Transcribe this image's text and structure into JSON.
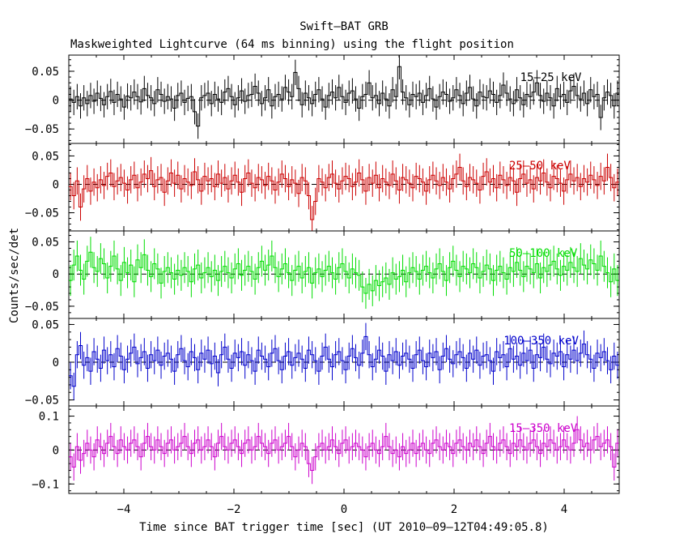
{
  "chart_data": {
    "type": "line",
    "title": "Swift–BAT GRB",
    "subtitle": "Maskweighted Lightcurve (64 ms binning) using the flight position",
    "xlabel": "Time since BAT trigger time [sec] (UT 2010–09–12T04:49:05.8)",
    "ylabel": "Counts/sec/det",
    "xlim": [
      -5.0,
      5.0
    ],
    "x_tick_labels": [
      "−4",
      "−2",
      "0",
      "2",
      "4"
    ],
    "bin_width_sec": 0.064,
    "panels": [
      {
        "name": "15–25 keV",
        "color": "#000000",
        "ylim": [
          -0.075,
          0.078
        ],
        "y_ticks": [
          -0.05,
          0,
          0.05
        ],
        "y_tick_labels": [
          "−0.05",
          "0",
          "0.05"
        ],
        "error": 0.022,
        "values": [
          0.002,
          -0.004,
          0.006,
          -0.01,
          0.004,
          -0.006,
          0.008,
          -0.002,
          0.012,
          0.003,
          -0.008,
          0.006,
          0.015,
          -0.004,
          0.01,
          0.002,
          -0.012,
          0.007,
          0.004,
          0.014,
          0.006,
          -0.003,
          0.02,
          0.008,
          0.004,
          -0.006,
          0.018,
          0.01,
          -0.002,
          0.006,
          0.002,
          -0.014,
          0.008,
          0.012,
          -0.004,
          0.003,
          0.006,
          -0.02,
          -0.045,
          0.004,
          0.008,
          0.012,
          -0.006,
          0.01,
          0.002,
          -0.004,
          0.014,
          0.02,
          0.006,
          -0.008,
          0.004,
          0.016,
          -0.002,
          0.008,
          0.01,
          0.024,
          0.012,
          -0.006,
          0.004,
          0.018,
          -0.01,
          0.006,
          0.01,
          0.002,
          0.022,
          0.014,
          0.006,
          0.048,
          0.02,
          -0.008,
          0.012,
          0.004,
          -0.006,
          0.01,
          0.018,
          0.002,
          -0.012,
          0.008,
          0.014,
          0.004,
          0.022,
          0.006,
          -0.004,
          0.012,
          0.016,
          0.002,
          -0.014,
          0.006,
          0.01,
          0.03,
          0.004,
          0.008,
          -0.006,
          0.012,
          0.002,
          -0.01,
          0.018,
          0.006,
          0.058,
          0.014,
          0.004,
          -0.008,
          0.01,
          0.006,
          0.012,
          -0.004,
          0.008,
          0.02,
          0.002,
          -0.012,
          0.006,
          0.014,
          0.01,
          -0.002,
          0.004,
          0.018,
          0.008,
          -0.006,
          0.012,
          0.022,
          0.002,
          -0.01,
          0.014,
          0.006,
          0.004,
          0.016,
          0.01,
          -0.004,
          0.008,
          0.026,
          0.012,
          0.002,
          -0.006,
          0.018,
          0.004,
          -0.008,
          0.01,
          0.006,
          0.014,
          0.03,
          0.008,
          -0.002,
          0.012,
          0.004,
          -0.01,
          0.02,
          0.006,
          0.01,
          -0.004,
          0.016,
          0.024,
          0.008,
          0.002,
          0.012,
          -0.006,
          0.018,
          0.006,
          0.01,
          -0.03,
          0.004,
          0.014,
          0.008,
          -0.01,
          0.012
        ],
        "annotation_x": 3.2
      },
      {
        "name": "25–50 keV",
        "color": "#cc0000",
        "ylim": [
          -0.082,
          0.072
        ],
        "y_ticks": [
          -0.05,
          0,
          0.05
        ],
        "y_tick_labels": [
          "−0.05",
          "0",
          "0.05"
        ],
        "error": 0.024,
        "values": [
          -0.004,
          -0.02,
          0.006,
          -0.04,
          -0.008,
          0.01,
          -0.012,
          0.004,
          -0.006,
          0.008,
          -0.002,
          0.014,
          0.02,
          -0.004,
          0.006,
          0.012,
          0.002,
          -0.01,
          0.008,
          0.016,
          -0.006,
          0.004,
          0.018,
          0.01,
          0.024,
          -0.004,
          0.008,
          0.012,
          -0.014,
          0.006,
          0.02,
          0.002,
          0.016,
          -0.008,
          0.01,
          0.004,
          -0.002,
          0.022,
          0.008,
          -0.012,
          0.014,
          0.006,
          0.01,
          -0.004,
          0.018,
          0.002,
          0.012,
          -0.008,
          0.006,
          0.016,
          0.004,
          -0.014,
          0.01,
          0.02,
          0.002,
          -0.006,
          0.012,
          0.008,
          -0.002,
          0.014,
          0.006,
          -0.01,
          0.004,
          0.018,
          0.01,
          -0.004,
          0.008,
          0.002,
          -0.016,
          0.012,
          0.006,
          -0.02,
          -0.062,
          -0.03,
          0.01,
          0.004,
          -0.006,
          0.012,
          0.018,
          0.002,
          -0.008,
          0.006,
          0.014,
          0.01,
          -0.004,
          0.004,
          0.02,
          0.008,
          -0.012,
          0.012,
          0.002,
          0.016,
          -0.006,
          0.01,
          0.004,
          -0.002,
          0.018,
          0.006,
          -0.01,
          0.012,
          0.008,
          0.002,
          -0.006,
          0.014,
          0.01,
          0.004,
          -0.012,
          0.008,
          0.016,
          0.006,
          -0.002,
          0.012,
          0.004,
          -0.008,
          0.01,
          0.018,
          0.03,
          0.006,
          -0.004,
          0.012,
          0.008,
          0.002,
          -0.01,
          0.014,
          0.022,
          0.004,
          0.01,
          -0.006,
          0.016,
          0.008,
          -0.002,
          0.012,
          0.006,
          -0.014,
          0.01,
          0.018,
          0.002,
          0.008,
          -0.008,
          0.012,
          0.006,
          0.02,
          0.004,
          -0.006,
          0.014,
          0.01,
          0.002,
          -0.012,
          0.008,
          0.018,
          0.006,
          0.012,
          -0.004,
          0.01,
          0.004,
          0.016,
          0.008,
          -0.002,
          0.014,
          0.006,
          0.03,
          0.012,
          -0.006,
          0.004
        ],
        "annotation_x": 3.0
      },
      {
        "name": "50–100 keV",
        "color": "#00dd00",
        "ylim": [
          -0.069,
          0.067
        ],
        "y_ticks": [
          -0.05,
          0,
          0.05
        ],
        "y_tick_labels": [
          "−0.05",
          "0",
          "0.05"
        ],
        "error": 0.024,
        "values": [
          -0.01,
          0.014,
          0.028,
          0.006,
          -0.008,
          0.02,
          0.034,
          0.01,
          0.004,
          0.024,
          0.016,
          -0.006,
          0.012,
          0.028,
          0.008,
          -0.01,
          0.018,
          0.002,
          0.014,
          -0.012,
          0.022,
          0.01,
          0.03,
          0.006,
          -0.004,
          0.016,
          0.008,
          -0.014,
          0.004,
          0.01,
          0.002,
          -0.008,
          0.006,
          -0.002,
          0.01,
          0.004,
          -0.012,
          0.008,
          0.014,
          -0.006,
          0.002,
          0.01,
          -0.004,
          0.006,
          -0.01,
          0.004,
          0.012,
          0.002,
          -0.006,
          0.008,
          0.016,
          -0.002,
          0.006,
          0.012,
          0.004,
          -0.008,
          0.01,
          0.02,
          0.006,
          0.014,
          0.028,
          0.01,
          -0.004,
          0.008,
          0.016,
          0.002,
          -0.01,
          0.006,
          0.012,
          -0.006,
          0.004,
          0.01,
          -0.014,
          0.002,
          0.008,
          -0.004,
          0.006,
          0.012,
          0.002,
          -0.008,
          0.01,
          0.016,
          0.004,
          -0.006,
          0.008,
          0.002,
          -0.002,
          -0.02,
          -0.03,
          -0.016,
          -0.026,
          -0.01,
          -0.018,
          -0.012,
          -0.006,
          -0.016,
          0.002,
          -0.008,
          -0.004,
          0.006,
          -0.012,
          0.002,
          0.01,
          0.004,
          -0.008,
          0.006,
          0.012,
          0.002,
          -0.006,
          0.008,
          0.016,
          0.004,
          -0.01,
          0.01,
          0.02,
          0.006,
          -0.004,
          0.012,
          0.008,
          0.002,
          0.016,
          0.01,
          -0.006,
          0.004,
          0.014,
          0.008,
          -0.01,
          0.006,
          0.012,
          0.002,
          -0.008,
          0.01,
          0.004,
          0.018,
          0.006,
          -0.004,
          0.012,
          0.008,
          0.002,
          0.016,
          -0.006,
          0.01,
          0.004,
          0.014,
          0.02,
          0.008,
          -0.002,
          0.012,
          0.006,
          0.018,
          0.01,
          0.004,
          0.024,
          0.014,
          0.008,
          0.022,
          0.016,
          0.006,
          0.028,
          0.012,
          0.002,
          -0.012,
          0.008,
          -0.01
        ],
        "annotation_x": 3.0
      },
      {
        "name": "100–350 keV",
        "color": "#0000cc",
        "ylim": [
          -0.058,
          0.058
        ],
        "y_ticks": [
          -0.05,
          0,
          0.05
        ],
        "y_tick_labels": [
          "−0.05",
          "0",
          "0.05"
        ],
        "error": 0.018,
        "values": [
          -0.018,
          -0.032,
          0.01,
          0.022,
          -0.004,
          0.006,
          -0.012,
          0.014,
          0.004,
          -0.008,
          0.016,
          0.002,
          0.01,
          -0.006,
          0.018,
          0.008,
          -0.01,
          0.004,
          0.012,
          0.02,
          -0.002,
          0.006,
          0.014,
          -0.008,
          0.01,
          0.002,
          0.016,
          -0.004,
          0.008,
          0.012,
          0.004,
          -0.012,
          0.01,
          0.018,
          0.002,
          -0.006,
          0.014,
          0.006,
          -0.01,
          0.012,
          0.004,
          0.016,
          -0.002,
          0.008,
          -0.014,
          0.01,
          0.02,
          0.004,
          -0.008,
          0.012,
          0.006,
          0.014,
          -0.004,
          0.01,
          0.002,
          -0.012,
          0.016,
          0.008,
          0.004,
          -0.006,
          0.012,
          0.018,
          0.002,
          -0.01,
          0.008,
          0.014,
          -0.004,
          0.006,
          0.012,
          0.004,
          -0.008,
          0.016,
          0.01,
          0.002,
          -0.012,
          0.008,
          0.02,
          0.004,
          -0.006,
          0.01,
          0.014,
          0.002,
          -0.01,
          0.008,
          0.018,
          0.006,
          -0.004,
          0.012,
          0.034,
          0.01,
          -0.006,
          0.004,
          0.016,
          0.008,
          -0.012,
          0.01,
          0.002,
          0.014,
          -0.004,
          0.008,
          0.012,
          0.004,
          -0.008,
          0.01,
          0.016,
          0.002,
          -0.006,
          0.012,
          0.006,
          0.014,
          -0.01,
          0.008,
          0.018,
          0.004,
          -0.002,
          0.01,
          0.014,
          0.006,
          -0.008,
          0.012,
          0.004,
          0.016,
          -0.004,
          0.008,
          0.01,
          0.002,
          -0.012,
          0.014,
          0.006,
          0.01,
          -0.006,
          0.018,
          0.004,
          0.008,
          -0.004,
          0.012,
          0.002,
          0.016,
          -0.008,
          0.01,
          0.006,
          0.02,
          0.004,
          -0.002,
          0.012,
          0.008,
          0.014,
          -0.006,
          0.01,
          0.004,
          0.016,
          0.002,
          0.012,
          0.024,
          0.01,
          0.004,
          -0.008,
          0.012,
          0.006,
          0.014,
          0.002,
          -0.01,
          0.008,
          -0.004
        ],
        "annotation_x": 2.9
      },
      {
        "name": "15–350 keV",
        "color": "#cc00cc",
        "ylim": [
          -0.128,
          0.13
        ],
        "y_ticks": [
          -0.1,
          0,
          0.1
        ],
        "y_tick_labels": [
          "−0.1",
          "0",
          "0.1"
        ],
        "error": 0.04,
        "values": [
          -0.02,
          -0.05,
          0.01,
          -0.03,
          -0.01,
          0.02,
          0.0,
          -0.02,
          0.03,
          0.01,
          -0.01,
          0.02,
          0.04,
          0.01,
          -0.01,
          0.03,
          0.01,
          0.0,
          0.02,
          0.03,
          0.01,
          -0.02,
          0.02,
          0.04,
          0.01,
          0.0,
          0.03,
          0.01,
          -0.01,
          0.02,
          0.03,
          0.0,
          0.01,
          0.02,
          0.04,
          0.01,
          -0.01,
          0.02,
          0.03,
          0.0,
          0.01,
          0.03,
          0.01,
          -0.02,
          0.02,
          0.04,
          0.01,
          0.0,
          0.02,
          0.03,
          0.01,
          -0.01,
          0.02,
          0.03,
          0.0,
          0.01,
          0.04,
          0.02,
          0.01,
          -0.01,
          0.02,
          0.03,
          0.0,
          0.01,
          0.02,
          0.04,
          0.01,
          -0.02,
          0.0,
          0.02,
          0.01,
          -0.04,
          -0.06,
          -0.02,
          0.01,
          0.02,
          0.0,
          0.01,
          0.03,
          0.01,
          -0.01,
          0.02,
          0.03,
          0.0,
          0.01,
          0.02,
          0.01,
          0.0,
          -0.02,
          0.01,
          0.02,
          0.0,
          -0.01,
          0.01,
          0.04,
          0.01,
          -0.01,
          0.0,
          -0.02,
          0.01,
          -0.01,
          0.0,
          0.02,
          -0.01,
          0.01,
          0.02,
          0.0,
          -0.01,
          0.02,
          0.03,
          0.01,
          0.0,
          0.02,
          0.01,
          -0.01,
          0.02,
          0.03,
          0.01,
          0.0,
          0.02,
          0.01,
          0.03,
          0.01,
          -0.01,
          0.02,
          0.04,
          0.01,
          0.0,
          0.02,
          0.03,
          0.01,
          -0.01,
          0.02,
          0.01,
          0.03,
          0.01,
          0.0,
          0.02,
          0.03,
          0.01,
          -0.01,
          0.02,
          0.01,
          0.03,
          0.02,
          0.0,
          0.01,
          0.03,
          0.01,
          0.0,
          0.02,
          0.06,
          0.03,
          0.01,
          0.02,
          0.0,
          0.03,
          0.04,
          0.01,
          0.02,
          0.03,
          0.01,
          -0.05,
          0.02
        ],
        "annotation_x": 3.0
      }
    ]
  }
}
